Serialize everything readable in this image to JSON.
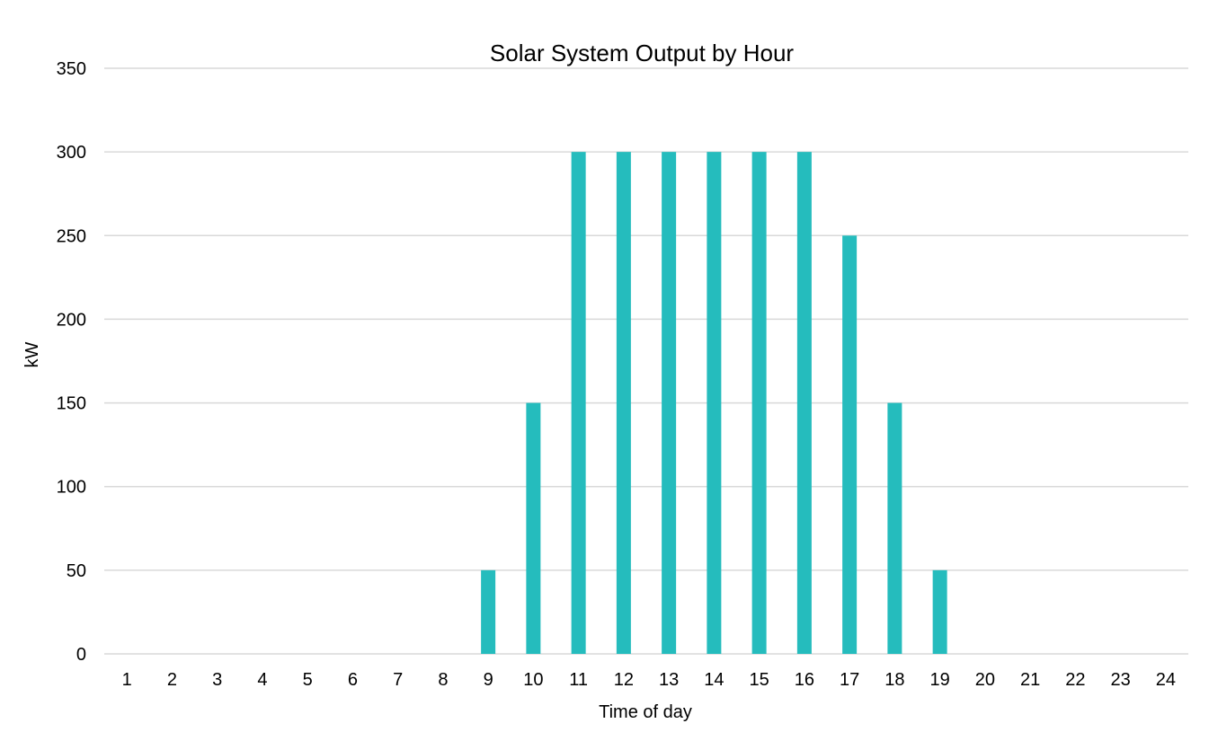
{
  "chart_data": {
    "type": "bar",
    "title": "Solar System Output by Hour",
    "xlabel": "Time of day",
    "ylabel": "kW",
    "categories": [
      "1",
      "2",
      "3",
      "4",
      "5",
      "6",
      "7",
      "8",
      "9",
      "10",
      "11",
      "12",
      "13",
      "14",
      "15",
      "16",
      "17",
      "18",
      "19",
      "20",
      "21",
      "22",
      "23",
      "24"
    ],
    "values": [
      0,
      0,
      0,
      0,
      0,
      0,
      0,
      0,
      50,
      150,
      300,
      300,
      300,
      300,
      300,
      300,
      250,
      150,
      50,
      0,
      0,
      0,
      0,
      0
    ],
    "ylim": [
      0,
      350
    ],
    "yticks": [
      0,
      50,
      100,
      150,
      200,
      250,
      300,
      350
    ],
    "grid": true,
    "legend": "none",
    "colors": {
      "bar": "#25bcbd",
      "grid": "#d9d9d9",
      "text": "#000000"
    }
  }
}
